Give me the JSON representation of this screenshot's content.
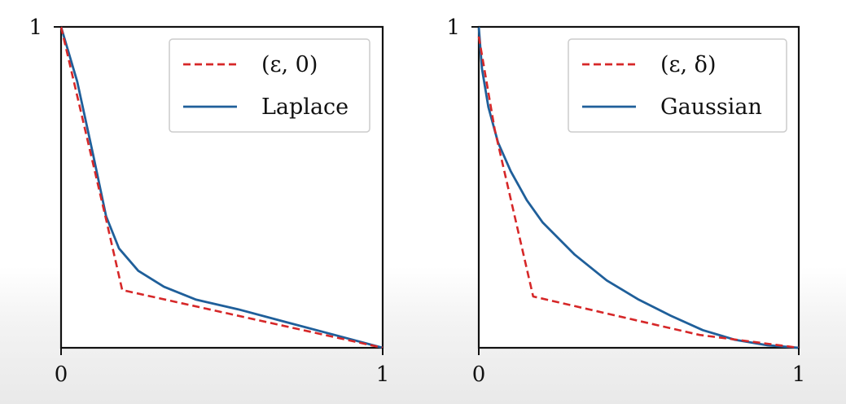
{
  "chart_data": [
    {
      "type": "line",
      "title": "",
      "xlabel": "",
      "ylabel": "",
      "xlim": [
        0,
        1
      ],
      "ylim": [
        0,
        1
      ],
      "x_ticks": [
        {
          "value": 0,
          "label": "0"
        },
        {
          "value": 1,
          "label": "1"
        }
      ],
      "y_ticks": [
        {
          "value": 1,
          "label": "1"
        }
      ],
      "grid": false,
      "legend_position": "top-right",
      "series": [
        {
          "name": "(ε, 0)",
          "style": "dashed",
          "color": "#d62728",
          "points": [
            [
              0,
              1
            ],
            [
              0.14,
              0.4
            ],
            [
              0.19,
              0.18
            ],
            [
              1,
              0
            ]
          ]
        },
        {
          "name": "Laplace",
          "style": "solid",
          "color": "#1f5f9a",
          "points": [
            [
              0,
              1
            ],
            [
              0.05,
              0.83
            ],
            [
              0.1,
              0.6
            ],
            [
              0.14,
              0.41
            ],
            [
              0.18,
              0.31
            ],
            [
              0.24,
              0.24
            ],
            [
              0.32,
              0.19
            ],
            [
              0.42,
              0.15
            ],
            [
              0.55,
              0.12
            ],
            [
              0.7,
              0.08
            ],
            [
              0.85,
              0.04
            ],
            [
              1,
              0
            ]
          ]
        }
      ]
    },
    {
      "type": "line",
      "title": "",
      "xlabel": "",
      "ylabel": "",
      "xlim": [
        0,
        1
      ],
      "ylim": [
        0,
        1
      ],
      "x_ticks": [
        {
          "value": 0,
          "label": "0"
        },
        {
          "value": 1,
          "label": "1"
        }
      ],
      "y_ticks": [
        {
          "value": 1,
          "label": "1"
        }
      ],
      "grid": false,
      "legend_position": "top-right",
      "series": [
        {
          "name": "(ε, δ)",
          "style": "dashed",
          "color": "#d62728",
          "points": [
            [
              0,
              0.97
            ],
            [
              0.05,
              0.68
            ],
            [
              0.17,
              0.16
            ],
            [
              0.69,
              0.04
            ],
            [
              1,
              0
            ]
          ]
        },
        {
          "name": "Gaussian",
          "style": "solid",
          "color": "#1f5f9a",
          "points": [
            [
              0,
              1
            ],
            [
              0.01,
              0.87
            ],
            [
              0.03,
              0.75
            ],
            [
              0.06,
              0.64
            ],
            [
              0.1,
              0.55
            ],
            [
              0.15,
              0.46
            ],
            [
              0.2,
              0.39
            ],
            [
              0.3,
              0.29
            ],
            [
              0.4,
              0.21
            ],
            [
              0.5,
              0.15
            ],
            [
              0.6,
              0.1
            ],
            [
              0.7,
              0.055
            ],
            [
              0.8,
              0.025
            ],
            [
              0.9,
              0.008
            ],
            [
              1,
              0
            ]
          ]
        }
      ]
    }
  ]
}
